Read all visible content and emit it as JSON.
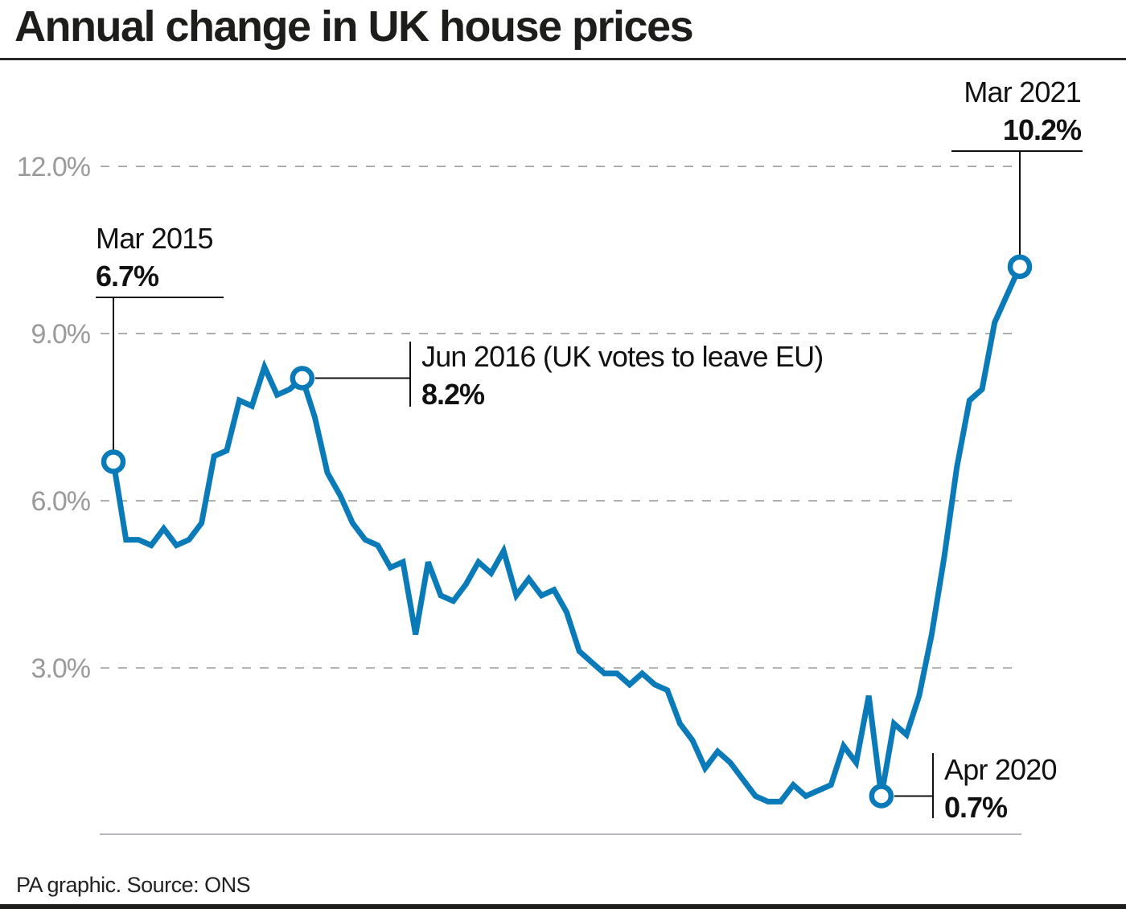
{
  "header": {
    "title": "Annual change in UK house prices"
  },
  "footer": {
    "source": "PA graphic. Source: ONS"
  },
  "colors": {
    "line": "#0a7bb8",
    "grid": "#9a9a9a",
    "text": "#111111",
    "baseline": "#b7b7c0"
  },
  "chart_data": {
    "type": "line",
    "title": "Annual change in UK house prices",
    "xlabel": "",
    "ylabel": "",
    "x_start": "Mar 2015",
    "x_end": "Mar 2021",
    "x_frequency": "monthly",
    "ylim": [
      0,
      12.5
    ],
    "y_ticks": [
      3.0,
      6.0,
      9.0,
      12.0
    ],
    "y_tick_labels": [
      "3.0%",
      "6.0%",
      "9.0%",
      "12.0%"
    ],
    "grid": "horizontal-dashed",
    "series": [
      {
        "name": "Annual change in UK house prices (%)",
        "values": [
          6.7,
          5.3,
          5.3,
          5.2,
          5.5,
          5.2,
          5.3,
          5.6,
          6.8,
          6.9,
          7.8,
          7.7,
          8.4,
          7.9,
          8.0,
          8.2,
          7.5,
          6.5,
          6.1,
          5.6,
          5.3,
          5.2,
          4.8,
          4.9,
          3.6,
          4.9,
          4.3,
          4.2,
          4.5,
          4.9,
          4.7,
          5.1,
          4.3,
          4.6,
          4.3,
          4.4,
          4.0,
          3.3,
          3.1,
          2.9,
          2.9,
          2.7,
          2.9,
          2.7,
          2.6,
          2.0,
          1.7,
          1.2,
          1.5,
          1.3,
          1.0,
          0.7,
          0.6,
          0.6,
          0.9,
          0.7,
          0.8,
          0.9,
          1.6,
          1.3,
          2.5,
          0.7,
          2.0,
          1.8,
          2.5,
          3.6,
          5.0,
          6.6,
          7.8,
          8.0,
          9.2,
          9.7,
          10.2
        ]
      }
    ],
    "annotations": [
      {
        "index": 0,
        "date": "Mar 2015",
        "value": "6.7%",
        "position": "above"
      },
      {
        "index": 15,
        "date": "Jun 2016 (UK votes to leave EU)",
        "value": "8.2%",
        "position": "right"
      },
      {
        "index": 61,
        "date": "Apr 2020",
        "value": "0.7%",
        "position": "right"
      },
      {
        "index": 72,
        "date": "Mar 2021",
        "value": "10.2%",
        "position": "above"
      }
    ]
  }
}
